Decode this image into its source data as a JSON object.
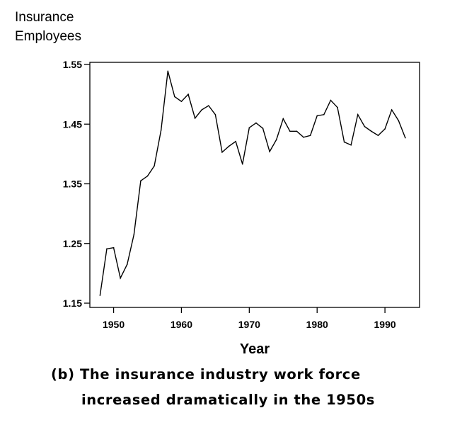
{
  "chart_data": {
    "type": "line",
    "ylabel_lines": [
      "Insurance",
      "Employees"
    ],
    "xlabel": "Year",
    "caption_lines": [
      "(b) The insurance industry work force",
      "increased dramatically in the 1950s"
    ],
    "xlim": [
      1946.5,
      1995.1
    ],
    "ylim": [
      1.15,
      1.55
    ],
    "x_ticks": [
      1950,
      1960,
      1970,
      1980,
      1990
    ],
    "x_tick_labels": [
      "1950",
      "1960",
      "1970",
      "1980",
      "1990"
    ],
    "y_ticks": [
      1.15,
      1.25,
      1.35,
      1.45,
      1.55
    ],
    "y_tick_labels": [
      "1.15",
      "1.25",
      "1.35",
      "1.45",
      "1.55"
    ],
    "grid": false,
    "series": [
      {
        "x": [
          1948,
          1949,
          1950,
          1951,
          1952,
          1953,
          1954,
          1955,
          1956,
          1957,
          1958,
          1959,
          1960,
          1961,
          1962,
          1963,
          1964,
          1965,
          1966,
          1967,
          1968,
          1969,
          1970,
          1971,
          1972,
          1973,
          1974,
          1975,
          1976,
          1977,
          1978,
          1979,
          1980,
          1981,
          1982,
          1983,
          1984,
          1985,
          1986,
          1987,
          1988,
          1989,
          1990,
          1991,
          1992,
          1993
        ],
        "values": [
          1.163,
          1.241,
          1.243,
          1.192,
          1.215,
          1.265,
          1.355,
          1.363,
          1.38,
          1.44,
          1.539,
          1.496,
          1.488,
          1.5,
          1.46,
          1.474,
          1.481,
          1.466,
          1.403,
          1.413,
          1.421,
          1.383,
          1.444,
          1.452,
          1.443,
          1.404,
          1.424,
          1.459,
          1.438,
          1.438,
          1.428,
          1.431,
          1.464,
          1.466,
          1.49,
          1.478,
          1.42,
          1.415,
          1.466,
          1.446,
          1.438,
          1.431,
          1.442,
          1.474,
          1.456,
          1.427
        ]
      }
    ]
  }
}
